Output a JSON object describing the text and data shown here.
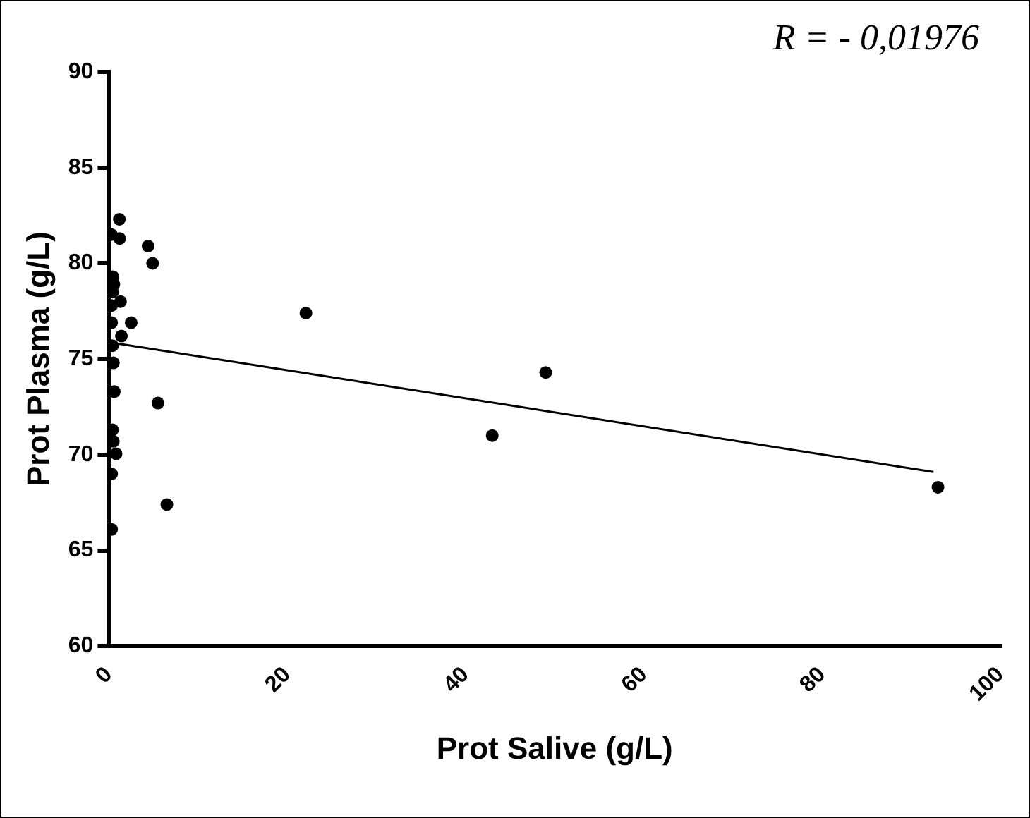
{
  "chart_data": {
    "type": "scatter",
    "xlabel": "Prot Salive (g/L)",
    "ylabel": "Prot Plasma (g/L)",
    "annotations": [
      "R = - 0,01976"
    ],
    "xlim": [
      0,
      100
    ],
    "xticks": [
      0,
      20,
      40,
      60,
      80,
      100
    ],
    "ylim": [
      60,
      90
    ],
    "yticks": [
      60,
      65,
      70,
      75,
      80,
      85,
      90
    ],
    "grid": false,
    "legend": false,
    "marker": "circle",
    "series": [
      {
        "color": "#000000",
        "x": [
          1.17,
          0.28,
          1.2,
          4.4,
          4.9,
          0.44,
          0.55,
          0.4,
          1.3,
          0.3,
          2.5,
          0.3,
          1.4,
          0.4,
          22.1,
          0.5,
          0.6,
          5.5,
          0.4,
          0.5,
          0.8,
          0.3,
          6.5,
          0.3,
          43,
          49,
          93
        ],
        "values": [
          82.3,
          81.5,
          81.3,
          80.9,
          80.0,
          79.3,
          78.9,
          78.5,
          78.0,
          77.8,
          76.9,
          76.9,
          76.2,
          75.7,
          77.4,
          74.8,
          73.3,
          72.7,
          71.3,
          70.7,
          70.05,
          69.0,
          67.4,
          66.1,
          71.0,
          74.3,
          68.3
        ]
      },
      {
        "type": "line",
        "color": "#000000",
        "x": [
          1.1,
          92.5
        ],
        "values": [
          75.8,
          69.1
        ],
        "marker": "none",
        "line_style": "solid"
      }
    ]
  }
}
